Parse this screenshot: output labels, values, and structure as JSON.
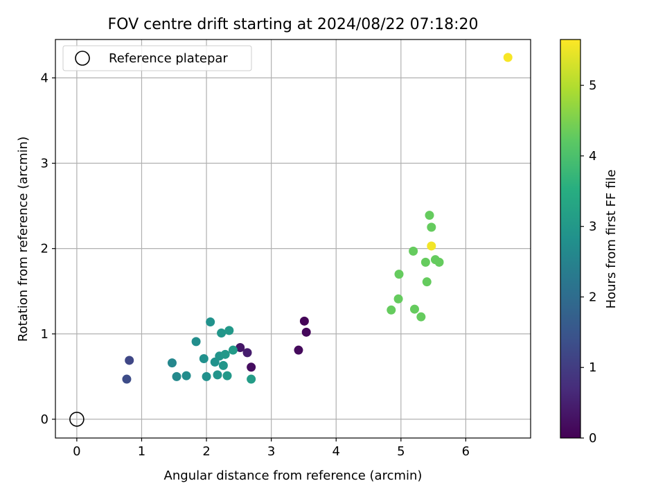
{
  "chart_data": {
    "type": "scatter",
    "title": "FOV centre drift starting at 2024/08/22 07:18:20",
    "xlabel": "Angular distance from reference (arcmin)",
    "ylabel": "Rotation from reference (arcmin)",
    "xlim": [
      -0.33,
      7.0
    ],
    "ylim": [
      -0.22,
      4.45
    ],
    "xticks": [
      0,
      1,
      2,
      3,
      4,
      5,
      6
    ],
    "yticks": [
      0,
      1,
      2,
      3,
      4
    ],
    "grid": true,
    "legend": {
      "placement": "top-left",
      "entries": [
        "Reference platepar"
      ]
    },
    "reference_point": {
      "x": 0,
      "y": 0,
      "label": "Reference platepar"
    },
    "colorbar": {
      "label": "Hours from first FF file",
      "colormap": "viridis",
      "range": [
        0,
        5.65
      ],
      "ticks": [
        0,
        1,
        2,
        3,
        4,
        5
      ]
    },
    "points": [
      {
        "x": 3.51,
        "y": 1.15,
        "h": 0.05
      },
      {
        "x": 3.54,
        "y": 1.02,
        "h": 0.1
      },
      {
        "x": 3.42,
        "y": 0.81,
        "h": 0.15
      },
      {
        "x": 2.52,
        "y": 0.84,
        "h": 0.35
      },
      {
        "x": 2.63,
        "y": 0.78,
        "h": 0.45
      },
      {
        "x": 2.69,
        "y": 0.61,
        "h": 0.2
      },
      {
        "x": 0.81,
        "y": 0.69,
        "h": 1.2
      },
      {
        "x": 0.77,
        "y": 0.47,
        "h": 1.3
      },
      {
        "x": 1.47,
        "y": 0.66,
        "h": 2.6
      },
      {
        "x": 1.54,
        "y": 0.5,
        "h": 2.65
      },
      {
        "x": 1.69,
        "y": 0.51,
        "h": 2.7
      },
      {
        "x": 1.84,
        "y": 0.91,
        "h": 2.75
      },
      {
        "x": 1.96,
        "y": 0.71,
        "h": 2.8
      },
      {
        "x": 2.0,
        "y": 0.5,
        "h": 2.8
      },
      {
        "x": 2.06,
        "y": 1.14,
        "h": 2.85
      },
      {
        "x": 2.13,
        "y": 0.67,
        "h": 2.85
      },
      {
        "x": 2.17,
        "y": 0.52,
        "h": 2.9
      },
      {
        "x": 2.2,
        "y": 0.74,
        "h": 2.9
      },
      {
        "x": 2.23,
        "y": 1.01,
        "h": 2.95
      },
      {
        "x": 2.26,
        "y": 0.63,
        "h": 2.95
      },
      {
        "x": 2.29,
        "y": 0.76,
        "h": 3.0
      },
      {
        "x": 2.32,
        "y": 0.51,
        "h": 3.0
      },
      {
        "x": 2.35,
        "y": 1.04,
        "h": 3.0
      },
      {
        "x": 2.41,
        "y": 0.81,
        "h": 3.05
      },
      {
        "x": 2.69,
        "y": 0.47,
        "h": 3.1
      },
      {
        "x": 4.85,
        "y": 1.28,
        "h": 4.3
      },
      {
        "x": 4.96,
        "y": 1.41,
        "h": 4.3
      },
      {
        "x": 4.97,
        "y": 1.7,
        "h": 4.3
      },
      {
        "x": 5.19,
        "y": 1.97,
        "h": 4.3
      },
      {
        "x": 5.21,
        "y": 1.29,
        "h": 4.3
      },
      {
        "x": 5.31,
        "y": 1.2,
        "h": 4.3
      },
      {
        "x": 5.38,
        "y": 1.84,
        "h": 4.3
      },
      {
        "x": 5.4,
        "y": 1.61,
        "h": 4.3
      },
      {
        "x": 5.44,
        "y": 2.39,
        "h": 4.3
      },
      {
        "x": 5.47,
        "y": 2.25,
        "h": 4.3
      },
      {
        "x": 5.53,
        "y": 1.87,
        "h": 4.3
      },
      {
        "x": 5.59,
        "y": 1.84,
        "h": 4.3
      },
      {
        "x": 5.47,
        "y": 2.03,
        "h": 5.55
      },
      {
        "x": 6.65,
        "y": 4.24,
        "h": 5.6
      }
    ]
  }
}
